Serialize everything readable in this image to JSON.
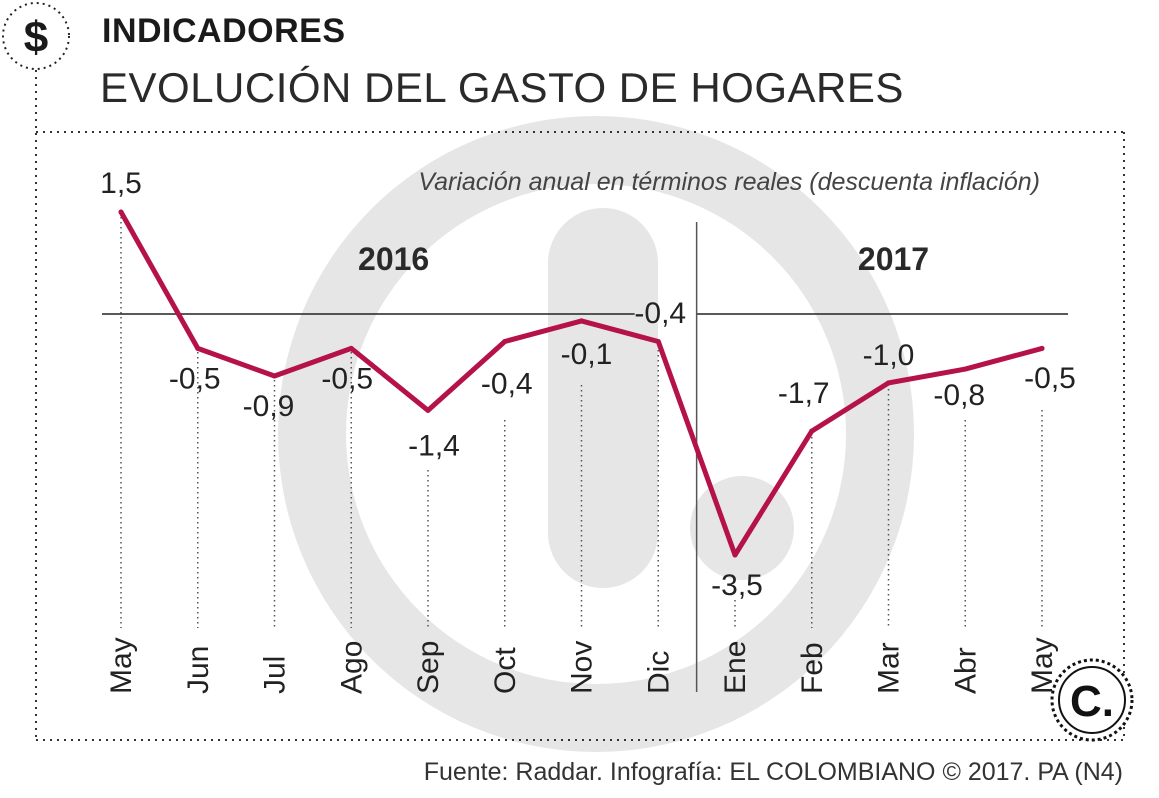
{
  "header": {
    "currency_symbol": "$",
    "topic": "INDICADORES",
    "headline": "EVOLUCIÓN DEL GASTO DE HOGARES"
  },
  "source_text": "Fuente: Raddar. Infografía: EL COLOMBIANO © 2017. PA (N4)",
  "logo_letter": "C.",
  "colors": {
    "line": "#b5124a",
    "line_highlight": "#c85a7e",
    "watermark": "#e6e6e6",
    "axis": "#222222"
  },
  "chart_data": {
    "type": "line",
    "subtitle": "Variación anual en términos reales (descuenta inflación)",
    "categories": [
      "May",
      "Jun",
      "Jul",
      "Ago",
      "Sep",
      "Oct",
      "Nov",
      "Dic",
      "Ene",
      "Feb",
      "Mar",
      "Abr",
      "May"
    ],
    "values": [
      1.5,
      -0.5,
      -0.9,
      -0.5,
      -1.4,
      -0.4,
      -0.1,
      -0.4,
      -3.5,
      -1.7,
      -1.0,
      -0.8,
      -0.5
    ],
    "value_labels": [
      "1,5",
      "-0,5",
      "-0,9",
      "-0,5",
      "-1,4",
      "-0,4",
      "-0,1",
      "-0,4",
      "-3,5",
      "-1,7",
      "-1,0",
      "-0,8",
      "-0,5"
    ],
    "year_groups": [
      {
        "label": "2016",
        "start": 0,
        "end": 7
      },
      {
        "label": "2017",
        "start": 8,
        "end": 12
      }
    ],
    "ylim": [
      -3.5,
      1.5
    ],
    "zero_line": true,
    "legend": "none",
    "grid": false
  }
}
